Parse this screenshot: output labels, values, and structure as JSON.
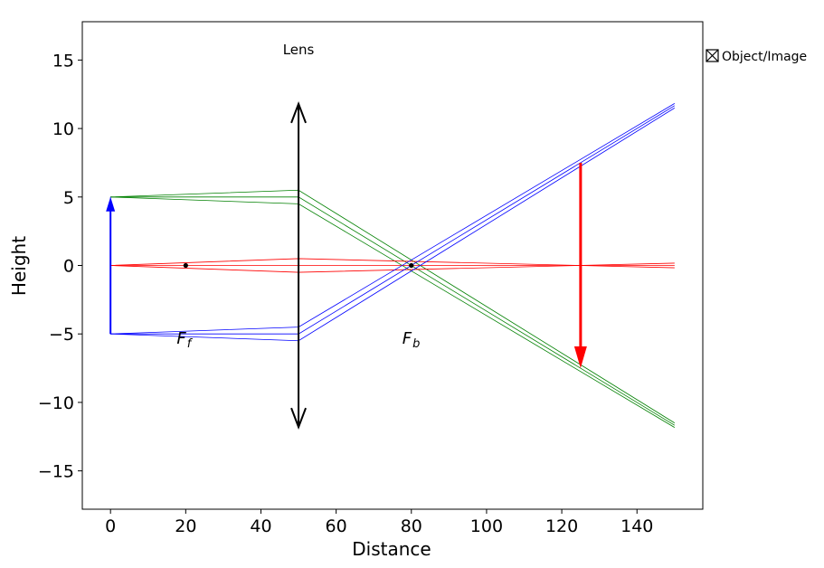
{
  "chart_data": {
    "type": "line",
    "xlabel": "Distance",
    "ylabel": "Height",
    "xlim": [
      -7.5,
      157.5
    ],
    "ylim": [
      -17.8,
      17.8
    ],
    "x_ticks": [
      0,
      20,
      40,
      60,
      80,
      100,
      120,
      140
    ],
    "y_ticks": [
      -15,
      -10,
      -5,
      0,
      5,
      10,
      15
    ],
    "x_tick_labels": [
      "0",
      "20",
      "40",
      "60",
      "80",
      "100",
      "120",
      "140"
    ],
    "y_tick_labels": [
      "−15",
      "−10",
      "−5",
      "0",
      "5",
      "10",
      "15"
    ],
    "lens": {
      "label": "Lens",
      "x": 50,
      "y_top": 11.8,
      "y_bottom": -11.8,
      "color": "#000000"
    },
    "focal_points": [
      {
        "name": "F",
        "subscript": "f",
        "x": 20,
        "y": 0
      },
      {
        "name": "F",
        "subscript": "b",
        "x": 80,
        "y": 0
      }
    ],
    "object": {
      "x": 0,
      "y_start": -5,
      "y_end": 5,
      "color": "#0000ff"
    },
    "image": {
      "x": 125,
      "y_start": 7.5,
      "y_end": -7.5,
      "color": "#ff0000"
    },
    "legend": {
      "label": "Object/Image",
      "placement": "right",
      "icon": "crossed-box-icon"
    },
    "series": [
      {
        "color": "#008000",
        "x": [
          0,
          50,
          150
        ],
        "y": [
          5,
          5.5,
          -11.5
        ]
      },
      {
        "color": "#008000",
        "x": [
          0,
          50,
          150
        ],
        "y": [
          5,
          5,
          -11.67
        ]
      },
      {
        "color": "#008000",
        "x": [
          0,
          50,
          150
        ],
        "y": [
          5,
          4.5,
          -11.83
        ]
      },
      {
        "color": "#ff0000",
        "x": [
          0,
          50,
          150
        ],
        "y": [
          0,
          0.5,
          -0.17
        ]
      },
      {
        "color": "#ff0000",
        "x": [
          0,
          50,
          150
        ],
        "y": [
          0,
          0,
          0
        ]
      },
      {
        "color": "#ff0000",
        "x": [
          0,
          50,
          150
        ],
        "y": [
          0,
          -0.5,
          0.17
        ]
      },
      {
        "color": "#0000ff",
        "x": [
          0,
          50,
          150
        ],
        "y": [
          -5,
          -4.5,
          11.83
        ]
      },
      {
        "color": "#0000ff",
        "x": [
          0,
          50,
          150
        ],
        "y": [
          -5,
          -5,
          11.67
        ]
      },
      {
        "color": "#0000ff",
        "x": [
          0,
          50,
          150
        ],
        "y": [
          -5,
          -5.5,
          11.5
        ]
      },
      {
        "color": "#0000ff",
        "x": [
          0,
          0
        ],
        "y": [
          -5,
          5
        ]
      }
    ]
  }
}
